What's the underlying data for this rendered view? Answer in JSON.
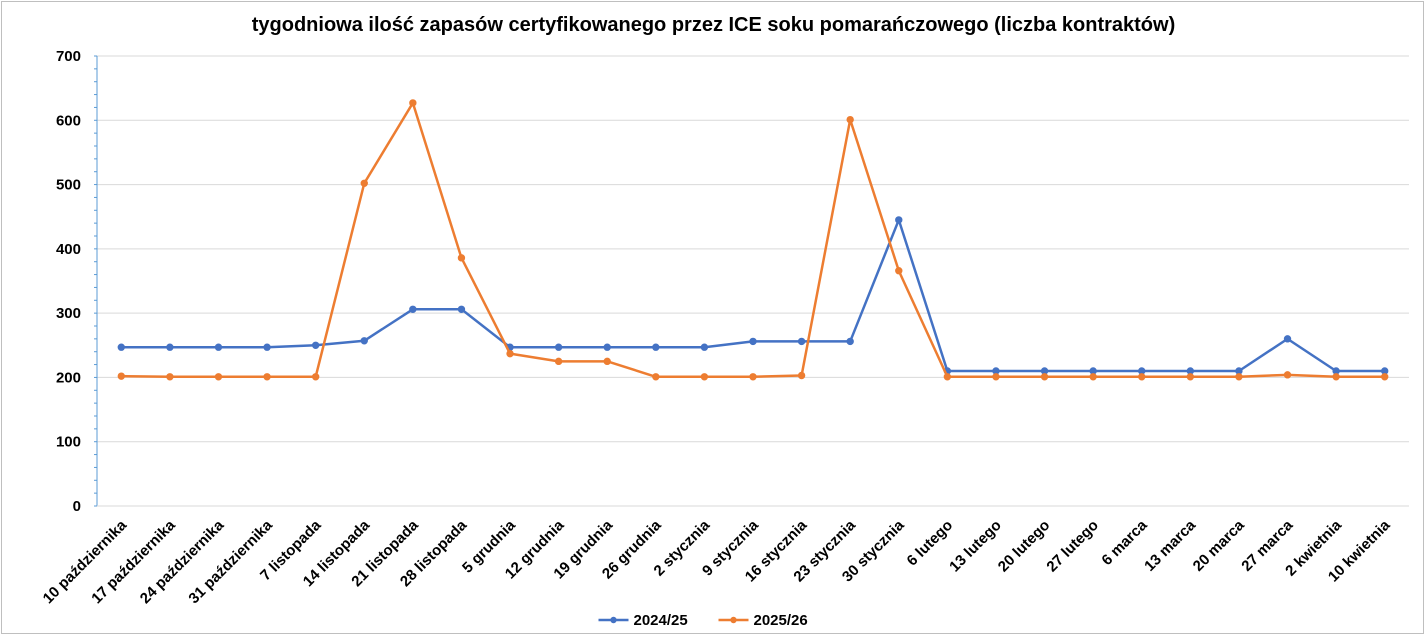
{
  "chart_data": {
    "type": "line",
    "title": "tygodniowa ilość zapasów certyfikowanego przez ICE soku pomarańczowego (liczba kontraktów)",
    "xlabel": "",
    "ylabel": "",
    "ylim": [
      0,
      700
    ],
    "yticks": [
      0,
      100,
      200,
      300,
      400,
      500,
      600,
      700
    ],
    "grid": true,
    "legend_position": "bottom",
    "categories": [
      "10 października",
      "17 października",
      "24 października",
      "31 października",
      "7 listopada",
      "14 listopada",
      "21 listopada",
      "28 listopada",
      "5 grudnia",
      "12 grudnia",
      "19 grudnia",
      "26 grudnia",
      "2 stycznia",
      "9 stycznia",
      "16 stycznia",
      "23 stycznia",
      "30 stycznia",
      "6 lutego",
      "13 lutego",
      "20 lutego",
      "27 lutego",
      "6 marca",
      "13 marca",
      "20 marca",
      "27 marca",
      "2 kwietnia",
      "10 kwietnia"
    ],
    "series": [
      {
        "name": "2024/25",
        "color": "#4472c4",
        "values": [
          247,
          247,
          247,
          247,
          250,
          257,
          306,
          306,
          247,
          247,
          247,
          247,
          247,
          256,
          256,
          256,
          445,
          210,
          210,
          210,
          210,
          210,
          210,
          210,
          260,
          210,
          210
        ]
      },
      {
        "name": "2025/26",
        "color": "#ed7d31",
        "values": [
          202,
          201,
          201,
          201,
          201,
          502,
          627,
          386,
          237,
          225,
          225,
          201,
          201,
          201,
          203,
          601,
          366,
          201,
          201,
          201,
          201,
          201,
          201,
          201,
          204,
          201,
          201
        ]
      }
    ]
  }
}
